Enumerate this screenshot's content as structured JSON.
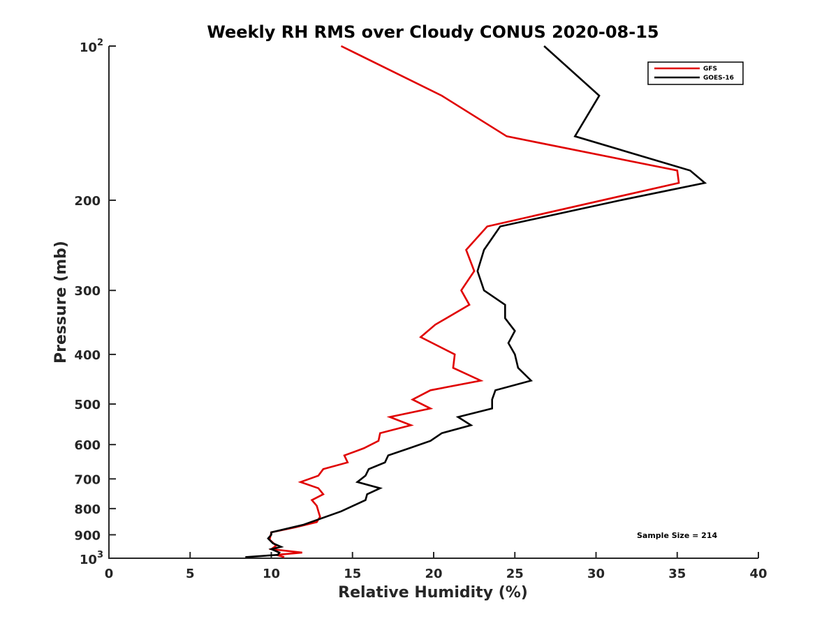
{
  "chart_data": {
    "type": "line",
    "title": "Weekly RH RMS over Cloudy CONUS 2020-08-15",
    "xlabel": "Relative Humidity (%)",
    "ylabel": "Pressure (mb)",
    "xlim": [
      0,
      40
    ],
    "ylim": [
      100,
      1000
    ],
    "y_scale": "log",
    "y_direction": "reversed",
    "grid": false,
    "legend_placement": "top-right",
    "annotation": "Sample Size = 214",
    "x_ticks": [
      {
        "value": 0,
        "label": "0"
      },
      {
        "value": 5,
        "label": "5"
      },
      {
        "value": 10,
        "label": "10"
      },
      {
        "value": 15,
        "label": "15"
      },
      {
        "value": 20,
        "label": "20"
      },
      {
        "value": 25,
        "label": "25"
      },
      {
        "value": 30,
        "label": "30"
      },
      {
        "value": 35,
        "label": "35"
      },
      {
        "value": 40,
        "label": "40"
      }
    ],
    "y_ticks": [
      {
        "value": 100,
        "label": "10",
        "sup": "2"
      },
      {
        "value": 200,
        "label": "200",
        "sup": ""
      },
      {
        "value": 300,
        "label": "300",
        "sup": ""
      },
      {
        "value": 400,
        "label": "400",
        "sup": ""
      },
      {
        "value": 500,
        "label": "500",
        "sup": ""
      },
      {
        "value": 600,
        "label": "600",
        "sup": ""
      },
      {
        "value": 700,
        "label": "700",
        "sup": ""
      },
      {
        "value": 800,
        "label": "800",
        "sup": ""
      },
      {
        "value": 900,
        "label": "900",
        "sup": ""
      },
      {
        "value": 1000,
        "label": "10",
        "sup": "3"
      }
    ],
    "series": [
      {
        "name": "GFS",
        "color": "#e00000",
        "points": [
          [
            14.3,
            100
          ],
          [
            20.5,
            125
          ],
          [
            24.5,
            150
          ],
          [
            35.0,
            175
          ],
          [
            35.1,
            185
          ],
          [
            23.3,
            225
          ],
          [
            22.0,
            250
          ],
          [
            22.5,
            275
          ],
          [
            21.7,
            300
          ],
          [
            22.2,
            320
          ],
          [
            20.1,
            350
          ],
          [
            19.2,
            370
          ],
          [
            21.3,
            400
          ],
          [
            21.2,
            425
          ],
          [
            22.9,
            450
          ],
          [
            19.8,
            470
          ],
          [
            18.7,
            490
          ],
          [
            19.8,
            510
          ],
          [
            17.3,
            530
          ],
          [
            18.6,
            550
          ],
          [
            16.7,
            570
          ],
          [
            16.6,
            590
          ],
          [
            15.7,
            610
          ],
          [
            14.5,
            630
          ],
          [
            14.7,
            650
          ],
          [
            13.2,
            670
          ],
          [
            12.9,
            690
          ],
          [
            11.8,
            710
          ],
          [
            12.9,
            730
          ],
          [
            13.2,
            750
          ],
          [
            12.5,
            770
          ],
          [
            12.8,
            790
          ],
          [
            12.9,
            810
          ],
          [
            13.0,
            830
          ],
          [
            12.8,
            850
          ],
          [
            11.5,
            870
          ],
          [
            10.0,
            890
          ],
          [
            9.9,
            920
          ],
          [
            10.3,
            945
          ],
          [
            10.0,
            960
          ],
          [
            11.9,
            975
          ],
          [
            10.3,
            985
          ],
          [
            10.8,
            995
          ]
        ]
      },
      {
        "name": "GOES-16",
        "color": "#000000",
        "points": [
          [
            26.8,
            100
          ],
          [
            30.2,
            125
          ],
          [
            28.7,
            150
          ],
          [
            35.8,
            175
          ],
          [
            36.7,
            185
          ],
          [
            31.5,
            200
          ],
          [
            24.1,
            225
          ],
          [
            23.1,
            250
          ],
          [
            22.7,
            275
          ],
          [
            23.1,
            300
          ],
          [
            24.4,
            320
          ],
          [
            24.4,
            340
          ],
          [
            25.0,
            360
          ],
          [
            24.6,
            380
          ],
          [
            25.0,
            400
          ],
          [
            25.2,
            425
          ],
          [
            26.0,
            450
          ],
          [
            23.8,
            470
          ],
          [
            23.6,
            490
          ],
          [
            23.6,
            510
          ],
          [
            21.5,
            530
          ],
          [
            22.3,
            550
          ],
          [
            20.5,
            570
          ],
          [
            19.8,
            590
          ],
          [
            18.5,
            610
          ],
          [
            17.2,
            630
          ],
          [
            17.0,
            650
          ],
          [
            16.0,
            670
          ],
          [
            15.8,
            690
          ],
          [
            15.3,
            710
          ],
          [
            16.7,
            730
          ],
          [
            15.9,
            750
          ],
          [
            15.8,
            770
          ],
          [
            14.3,
            810
          ],
          [
            12.0,
            860
          ],
          [
            10.0,
            890
          ],
          [
            10.0,
            900
          ],
          [
            9.8,
            915
          ],
          [
            10.1,
            935
          ],
          [
            10.6,
            950
          ],
          [
            10.0,
            960
          ],
          [
            10.5,
            975
          ],
          [
            10.4,
            985
          ],
          [
            8.4,
            995
          ]
        ]
      }
    ]
  }
}
